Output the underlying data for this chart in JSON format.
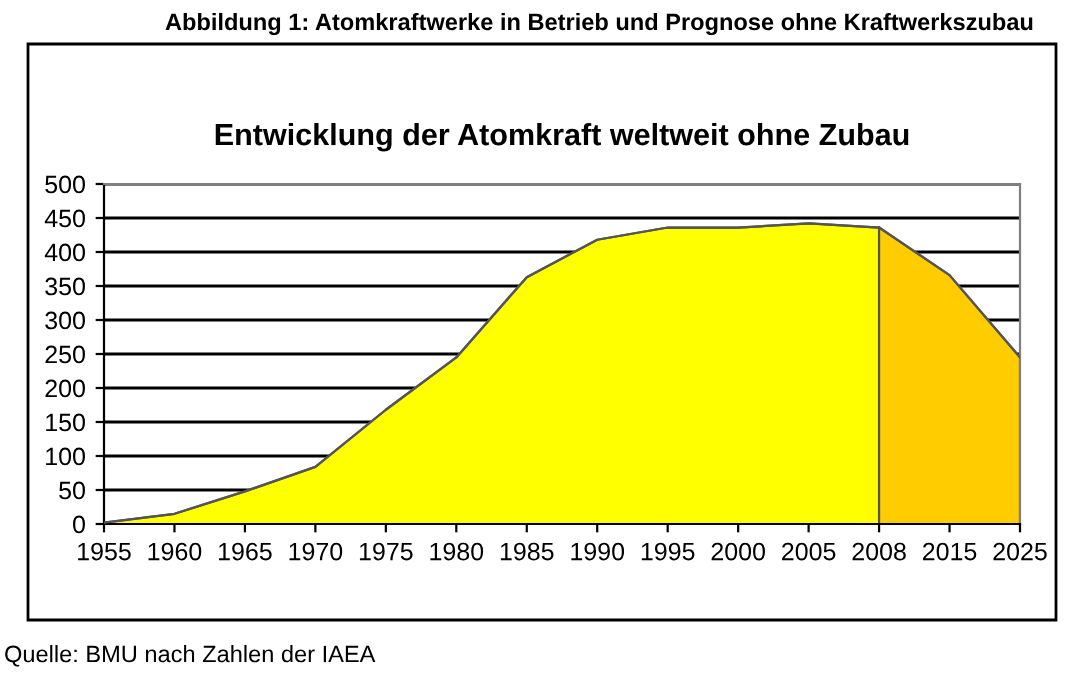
{
  "chart_data": {
    "type": "area",
    "subtitle": "Abbildung 1: Atomkraftwerke in Betrieb und Prognose ohne Kraftwerkszubau",
    "title": "Entwicklung der Atomkraft weltweit ohne Zubau",
    "categories": [
      "1955",
      "1960",
      "1965",
      "1970",
      "1975",
      "1980",
      "1985",
      "1990",
      "1995",
      "2000",
      "2005",
      "2008",
      "2015",
      "2025"
    ],
    "series": [
      {
        "color": "#ffff00",
        "values": [
          2,
          15,
          48,
          84,
          168,
          245,
          363,
          418,
          436,
          436,
          442,
          436,
          null,
          null
        ]
      },
      {
        "color": "#ffcc00",
        "values": [
          null,
          null,
          null,
          null,
          null,
          null,
          null,
          null,
          null,
          null,
          null,
          436,
          366,
          245
        ]
      }
    ],
    "ylim": [
      0,
      500
    ],
    "yticks": [
      0,
      50,
      100,
      150,
      200,
      250,
      300,
      350,
      400,
      450,
      500
    ],
    "grid": "y",
    "annotations": [
      "Quelle: BMU nach Zahlen der IAEA"
    ]
  }
}
